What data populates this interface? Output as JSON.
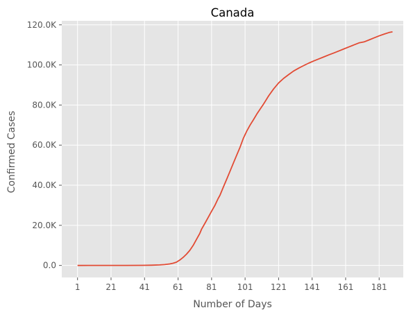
{
  "chart_data": {
    "type": "line",
    "title": "Canada",
    "xlabel": "Number of Days",
    "ylabel": "Confirmed Cases",
    "xlim": [
      -8.4,
      195.4
    ],
    "ylim": [
      -6000,
      122000
    ],
    "x_ticks": [
      1,
      21,
      41,
      61,
      81,
      101,
      121,
      141,
      161,
      181
    ],
    "x_tick_labels": [
      "1",
      "21",
      "41",
      "61",
      "81",
      "101",
      "121",
      "141",
      "161",
      "181"
    ],
    "y_ticks": [
      0,
      20000,
      40000,
      60000,
      80000,
      100000,
      120000
    ],
    "y_tick_labels": [
      "0.0",
      "20.0K",
      "40.0K",
      "60.0K",
      "80.0K",
      "100.0K",
      "120.0K"
    ],
    "grid": true,
    "colors": {
      "line": "#e24a33",
      "plot_bg": "#e5e5e5",
      "grid": "#ffffff"
    },
    "series": [
      {
        "x": [
          1,
          10,
          20,
          30,
          40,
          45,
          50,
          53,
          56,
          58,
          60,
          62,
          64,
          66,
          68,
          70,
          72,
          74,
          75,
          77,
          79,
          81,
          83,
          85,
          86,
          88,
          90,
          92,
          94,
          96,
          98,
          100,
          102,
          104,
          106,
          108,
          110,
          112,
          115,
          118,
          121,
          124,
          127,
          130,
          133,
          136,
          139,
          142,
          145,
          148,
          151,
          154,
          157,
          160,
          163,
          166,
          169,
          172,
          175,
          178,
          181,
          184,
          187,
          189
        ],
        "y": [
          0,
          5,
          10,
          20,
          60,
          110,
          250,
          450,
          750,
          1100,
          1600,
          2700,
          4000,
          5600,
          7500,
          10000,
          13000,
          16000,
          18000,
          21000,
          24000,
          27000,
          30000,
          33500,
          35000,
          39000,
          43000,
          47000,
          51000,
          55000,
          59000,
          63500,
          67000,
          70000,
          72700,
          75500,
          78000,
          80500,
          84500,
          88000,
          91000,
          93300,
          95200,
          97000,
          98400,
          99700,
          100900,
          102000,
          103000,
          104000,
          105000,
          106000,
          107000,
          108000,
          109000,
          110000,
          111000,
          111500,
          112500,
          113500,
          114500,
          115400,
          116200,
          116500
        ]
      }
    ]
  }
}
